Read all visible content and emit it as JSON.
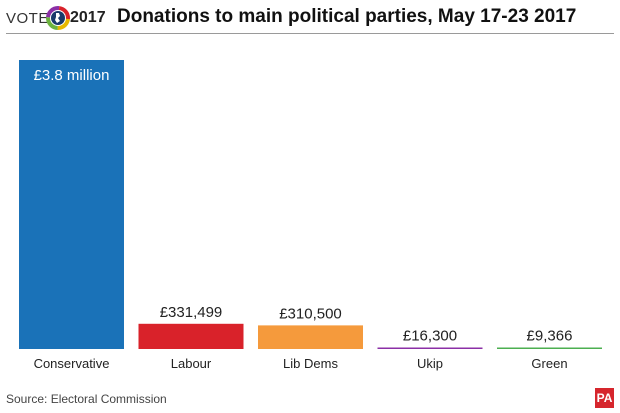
{
  "header": {
    "vote_word": "VOTE",
    "vote_year": "2017",
    "title": "Donations to main political parties, May 17-23 2017"
  },
  "footer": {
    "source": "Source: Electoral Commission",
    "publisher": "PA"
  },
  "chart_data": {
    "type": "bar",
    "title": "Donations to main political parties, May 17-23 2017",
    "categories": [
      "Conservative",
      "Labour",
      "Lib Dems",
      "Ukip",
      "Green"
    ],
    "values": [
      3800000,
      331499,
      310500,
      16300,
      9366
    ],
    "value_labels": [
      "£3.8 million",
      "£331,499",
      "£310,500",
      "£16,300",
      "£9,366"
    ],
    "colors": [
      "#1a72b8",
      "#d9222a",
      "#f59a3c",
      "#8b2fa6",
      "#4caf50"
    ],
    "xlabel": "",
    "ylabel": "",
    "ylim": [
      0,
      3800000
    ],
    "grid": false,
    "legend": "none"
  }
}
